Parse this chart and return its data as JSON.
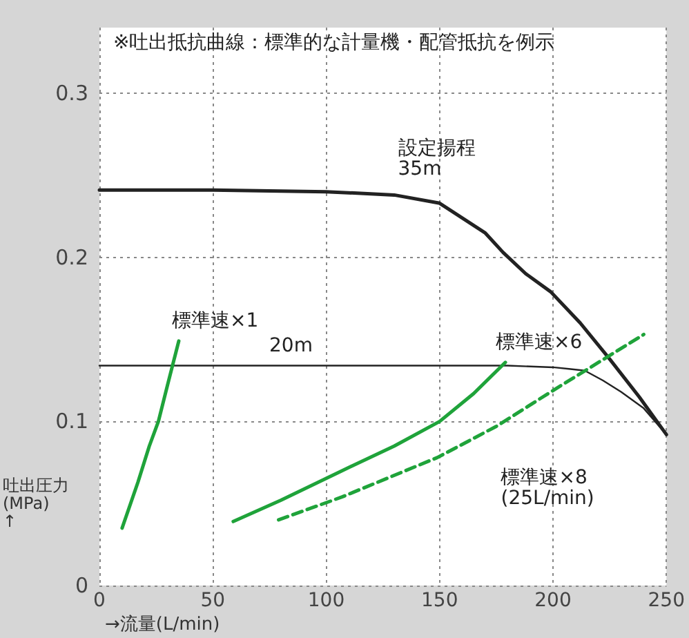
{
  "chart_data": {
    "type": "line",
    "xlabel": "→流量(L/min)",
    "ylabel": "吐出圧力\n(MPa)\n↑",
    "annotations": [
      "※吐出抵抗曲線：標準的な計量機・配管抵抗を例示"
    ],
    "xlim": [
      0,
      250
    ],
    "xticks": [
      0,
      50,
      100,
      150,
      200,
      250
    ],
    "ylim": [
      0,
      0.34
    ],
    "yticks": [
      0,
      0.1,
      0.2,
      0.3
    ],
    "grid": true,
    "legend": false,
    "marker": "none",
    "series": [
      {
        "name": "設定揚程\n35m",
        "color": "#222222",
        "line_style": "solid",
        "x": [
          0,
          50,
          100,
          130,
          150,
          170,
          178,
          188,
          199,
          212,
          225,
          238,
          250
        ],
        "values": [
          0.241,
          0.241,
          0.24,
          0.238,
          0.233,
          0.215,
          0.203,
          0.19,
          0.179,
          0.16,
          0.138,
          0.115,
          0.092
        ]
      },
      {
        "name": "20m",
        "color": "#222222",
        "line_style": "solid",
        "x": [
          0,
          100,
          180,
          200,
          207,
          214,
          222,
          230,
          240,
          250
        ],
        "values": [
          0.134,
          0.134,
          0.134,
          0.133,
          0.132,
          0.131,
          0.125,
          0.118,
          0.108,
          0.092
        ]
      },
      {
        "name": "標準速×1",
        "color": "#1fa33a",
        "line_style": "solid",
        "x": [
          10,
          17,
          22,
          26,
          30,
          35
        ],
        "values": [
          0.035,
          0.063,
          0.085,
          0.1,
          0.122,
          0.149
        ]
      },
      {
        "name": "標準速×6",
        "color": "#1fa33a",
        "line_style": "solid",
        "x": [
          59,
          80,
          107,
          130,
          150,
          165,
          179
        ],
        "values": [
          0.039,
          0.052,
          0.07,
          0.085,
          0.1,
          0.117,
          0.136
        ]
      },
      {
        "name": "標準速×8\n(25L/min)",
        "color": "#1fa33a",
        "line_style": "dashed",
        "x": [
          79,
          107,
          149,
          175,
          199,
          240
        ],
        "values": [
          0.04,
          0.054,
          0.078,
          0.097,
          0.118,
          0.153
        ]
      }
    ]
  }
}
